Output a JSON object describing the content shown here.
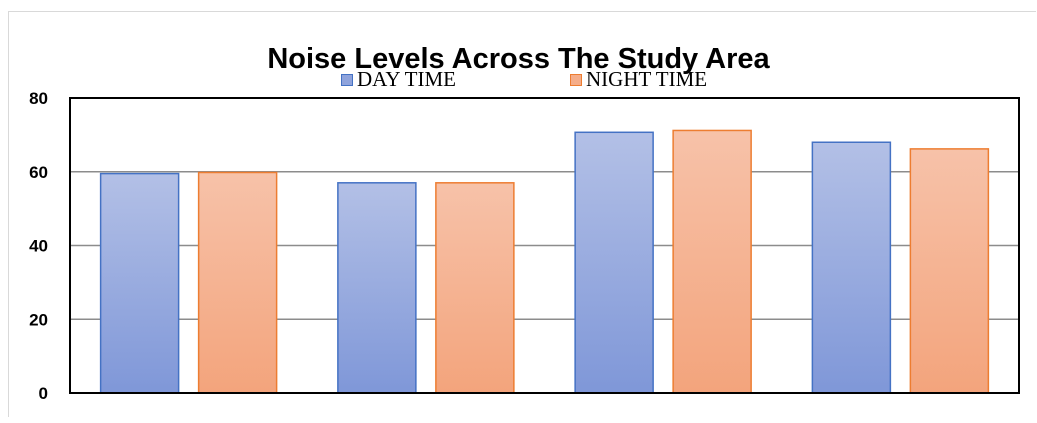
{
  "chart_data": {
    "type": "bar",
    "title": "Noise Levels Across The Study Area",
    "xlabel": "",
    "ylabel": "",
    "categories": [
      "",
      "",
      "",
      ""
    ],
    "series": [
      {
        "name": "DAY TIME",
        "values": [
          59.5,
          57.0,
          70.7,
          68.0
        ],
        "color": "#8fa3dc"
      },
      {
        "name": "NIGHT TIME",
        "values": [
          59.8,
          57.0,
          71.2,
          66.2
        ],
        "color": "#f5ad89"
      }
    ],
    "ylim": [
      0,
      80
    ],
    "yticks": [
      0,
      20,
      40,
      60,
      80
    ],
    "grid": true,
    "legend_position": "top-center"
  }
}
